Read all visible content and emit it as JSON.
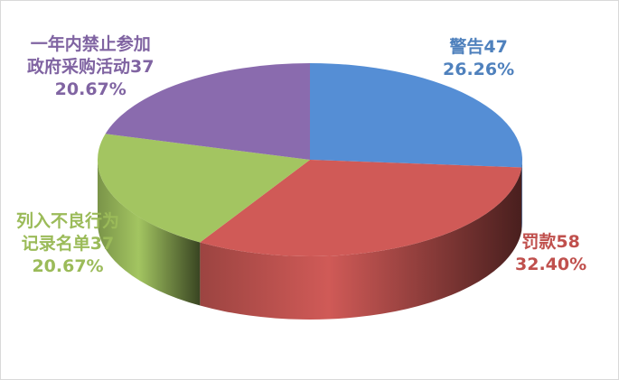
{
  "chart_data": {
    "type": "pie",
    "style": "3d",
    "categories": [
      "警告",
      "罚款",
      "列入不良行为记录名单",
      "一年内禁止参加政府采购活动"
    ],
    "values": [
      47,
      58,
      37,
      37
    ],
    "percents": [
      "26.26%",
      "32.40%",
      "20.67%",
      "20.67%"
    ],
    "colors": [
      "#558ed5",
      "#d05a57",
      "#a3c561",
      "#8a6bae"
    ],
    "legend": "none",
    "data_labels": [
      {
        "line1": "警告47",
        "line2": "26.26%"
      },
      {
        "line1": "罚款58",
        "line2": "32.40%"
      },
      {
        "line1": "列入不良行为",
        "line2": "记录名单37",
        "line3": "20.67%"
      },
      {
        "line1": "一年内禁止参加",
        "line2": "政府采购活动37",
        "line3": "20.67%"
      }
    ]
  }
}
